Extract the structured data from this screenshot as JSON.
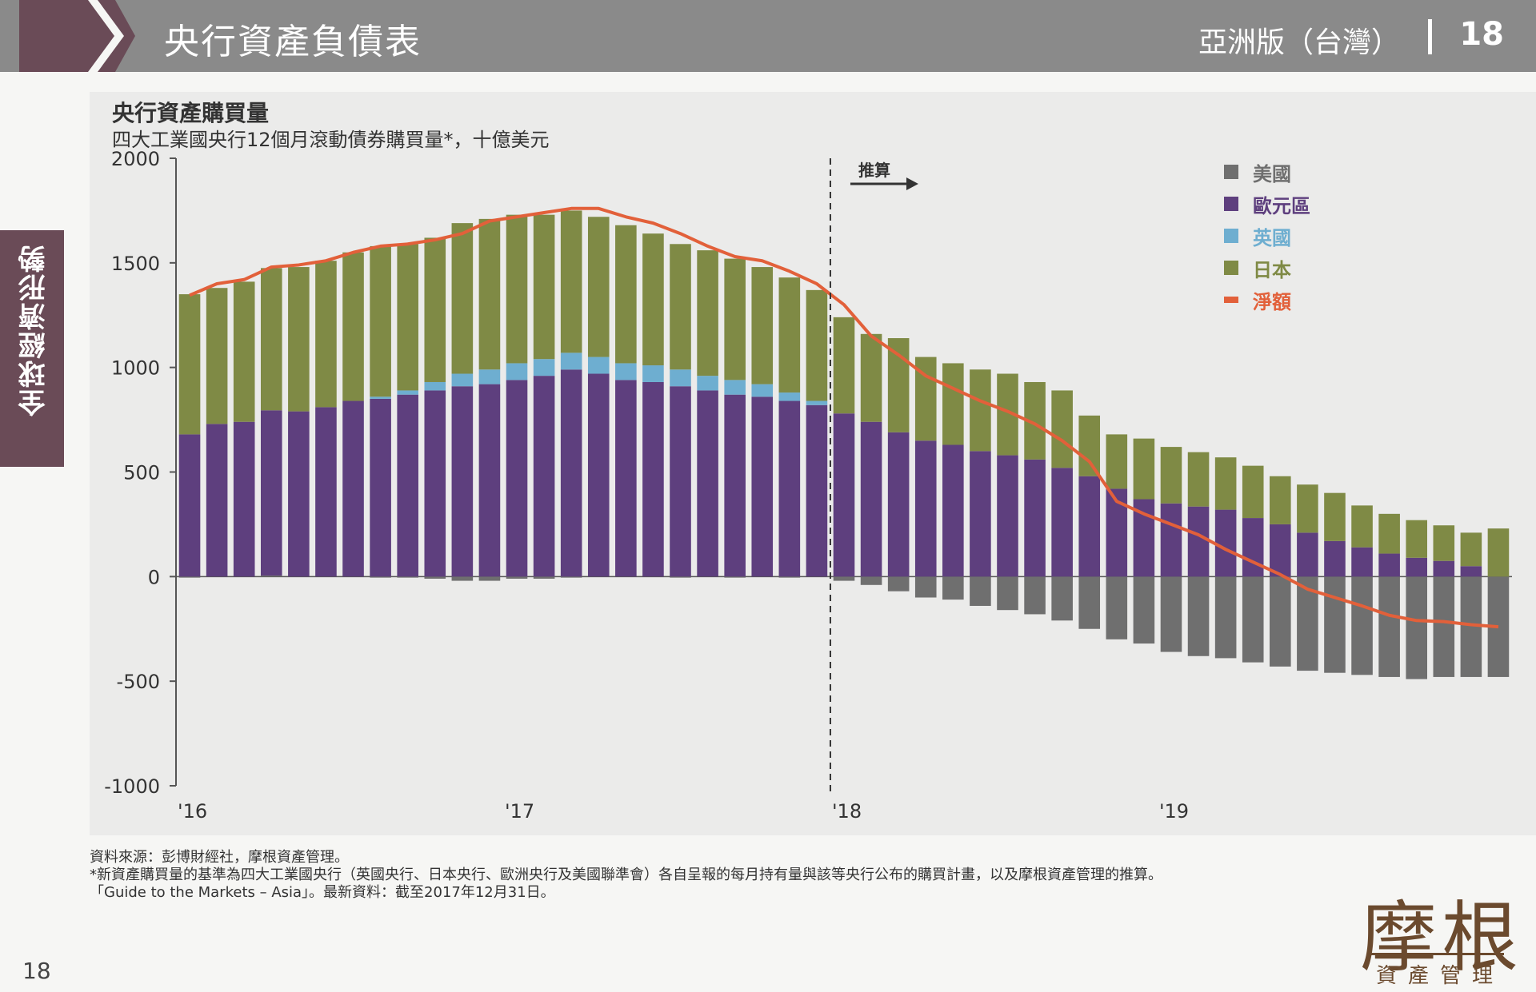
{
  "header": {
    "title": "央行資產負債表",
    "edition": "亞洲版（台灣）",
    "page": "18"
  },
  "side_tab": {
    "label": "全球經濟形勢"
  },
  "chart_data": {
    "type": "bar",
    "title": "央行資產購買量",
    "subtitle": "四大工業國央行12個月滾動債券購買量*，十億美元",
    "ylim": [
      -1000,
      2000
    ],
    "yticks": [
      "2000",
      "1500",
      "1000",
      "500",
      "0",
      "-500",
      "-1000"
    ],
    "xtick_labels": [
      {
        "index": 0,
        "label": "'16"
      },
      {
        "index": 12,
        "label": "'17"
      },
      {
        "index": 24,
        "label": "'18"
      },
      {
        "index": 36,
        "label": "'19"
      }
    ],
    "forecast_label": "推算",
    "forecast_start_index": 24,
    "stacked": true,
    "series": [
      {
        "name": "美國",
        "color": "#6f6f6f",
        "values": [
          -5,
          0,
          0,
          5,
          0,
          0,
          0,
          -5,
          -5,
          -10,
          -20,
          -20,
          -10,
          -10,
          -5,
          0,
          0,
          0,
          -5,
          0,
          -5,
          0,
          -5,
          0,
          -20,
          -40,
          -70,
          -100,
          -110,
          -140,
          -160,
          -180,
          -210,
          -250,
          -300,
          -320,
          -360,
          -380,
          -390,
          -410,
          -430,
          -450,
          -460,
          -470,
          -480,
          -490,
          -480,
          -480,
          -480
        ]
      },
      {
        "name": "歐元區",
        "color": "#5e3f7e",
        "values": [
          680,
          730,
          740,
          790,
          790,
          810,
          840,
          850,
          870,
          890,
          910,
          920,
          940,
          960,
          990,
          970,
          940,
          930,
          910,
          890,
          870,
          860,
          840,
          820,
          780,
          740,
          690,
          650,
          630,
          600,
          580,
          560,
          520,
          480,
          420,
          370,
          350,
          335,
          320,
          280,
          250,
          210,
          170,
          140,
          110,
          90,
          75,
          50,
          0
        ]
      },
      {
        "name": "英國",
        "color": "#6eaed0",
        "values": [
          0,
          0,
          0,
          0,
          0,
          0,
          0,
          10,
          20,
          40,
          60,
          70,
          80,
          80,
          80,
          80,
          80,
          80,
          80,
          70,
          70,
          60,
          40,
          20,
          0,
          0,
          0,
          0,
          0,
          0,
          0,
          0,
          0,
          0,
          0,
          0,
          0,
          0,
          0,
          0,
          0,
          0,
          0,
          0,
          0,
          0,
          0,
          0,
          0
        ]
      },
      {
        "name": "日本",
        "color": "#7f8a45",
        "values": [
          670,
          650,
          670,
          680,
          690,
          700,
          710,
          720,
          700,
          690,
          720,
          720,
          710,
          690,
          680,
          670,
          660,
          630,
          600,
          600,
          580,
          560,
          550,
          530,
          460,
          420,
          450,
          400,
          390,
          390,
          390,
          370,
          370,
          290,
          260,
          290,
          270,
          260,
          250,
          250,
          230,
          230,
          230,
          200,
          190,
          180,
          170,
          160,
          230
        ]
      }
    ],
    "net": {
      "name": "淨額",
      "color": "#e2603a",
      "values": [
        1345,
        1400,
        1420,
        1480,
        1490,
        1510,
        1550,
        1580,
        1590,
        1610,
        1640,
        1700,
        1720,
        1740,
        1760,
        1760,
        1720,
        1690,
        1640,
        1580,
        1530,
        1510,
        1460,
        1400,
        1300,
        1150,
        1060,
        960,
        900,
        840,
        790,
        730,
        650,
        550,
        360,
        300,
        250,
        200,
        130,
        70,
        10,
        -60,
        -100,
        -140,
        -185,
        -210,
        -215,
        -230,
        -240
      ]
    }
  },
  "footnotes": [
    "資料來源：彭博財經社，摩根資產管理。",
    "*新資產購買量的基準為四大工業國央行（英國央行、日本央行、歐洲央行及美國聯準會）各自呈報的每月持有量與該等央行公布的購買計畫，以及摩根資產管理的推算。",
    "「Guide to the Markets – Asia」。最新資料：截至2017年12月31日。"
  ],
  "page_number": "18",
  "logo": {
    "main": "摩根",
    "sub": "資產管理",
    "color": "#6b4a2e"
  }
}
